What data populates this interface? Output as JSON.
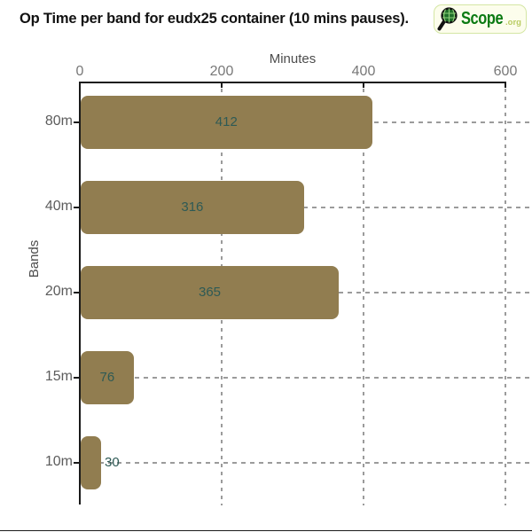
{
  "header": {
    "title": "Op Time per band for eudx25 container (10 mins pauses).",
    "logo": {
      "brand": "Scope",
      "tld": ".org",
      "icon": "magnifier-globe-icon",
      "brand_color": "#0a7a12",
      "tld_color": "#b9cc62",
      "border_color": "#d4e6a4",
      "background": "#fcfdec"
    }
  },
  "chart_data": {
    "type": "bar",
    "orientation": "horizontal",
    "title": "Op Time per band for eudx25 container (10 mins pauses).",
    "xlabel": "Minutes",
    "ylabel": "Bands",
    "categories": [
      "80m",
      "40m",
      "20m",
      "15m",
      "10m"
    ],
    "values": [
      412,
      316,
      365,
      76,
      30
    ],
    "xlim": [
      0,
      600
    ],
    "xticks": [
      0,
      200,
      400,
      600
    ],
    "grid": true,
    "legend": "none",
    "bar_color": "#917d50",
    "value_label_color": "#2e5a55",
    "grid_color": "#9b9b9b",
    "axis_color": "#1a1a1a",
    "tick_label_color": "#787878",
    "category_label_color": "#5c5c5c"
  }
}
